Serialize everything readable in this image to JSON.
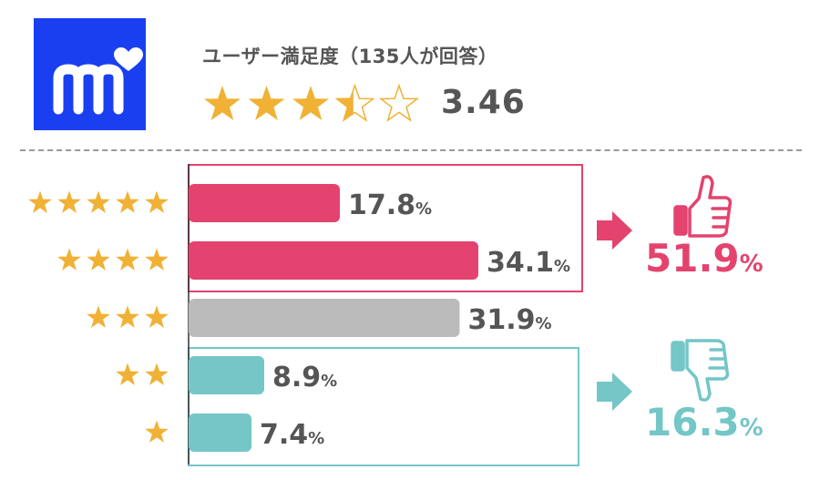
{
  "header": {
    "title": "ユーザー満足度（135人が回答）",
    "rating_value": "3.46",
    "rating_stars": 3.46,
    "rating_max": 5,
    "logo_icon": "m-heart-logo-icon"
  },
  "colors": {
    "positive": "#e3436e",
    "neutral": "#bbbbbb",
    "negative": "#74c6c7",
    "star": "#f0b135",
    "text": "#555555",
    "logo_bg": "#1a3ff0"
  },
  "chart_data": {
    "type": "bar",
    "orientation": "horizontal",
    "categories": [
      "★★★★★",
      "★★★★",
      "★★★",
      "★★",
      "★"
    ],
    "star_counts": [
      5,
      4,
      3,
      2,
      1
    ],
    "values": [
      17.8,
      34.1,
      31.9,
      8.9,
      7.4
    ],
    "labels": [
      "17.8",
      "34.1",
      "31.9",
      "8.9",
      "7.4"
    ],
    "unit": "%",
    "xlim": [
      0,
      40
    ],
    "groups": [
      {
        "type": "positive",
        "rows": [
          0,
          1
        ],
        "total": "51.9",
        "unit": "%",
        "icon": "thumbs-up-icon"
      },
      {
        "type": "negative",
        "rows": [
          3,
          4
        ],
        "total": "16.3",
        "unit": "%",
        "icon": "thumbs-down-icon"
      }
    ]
  }
}
